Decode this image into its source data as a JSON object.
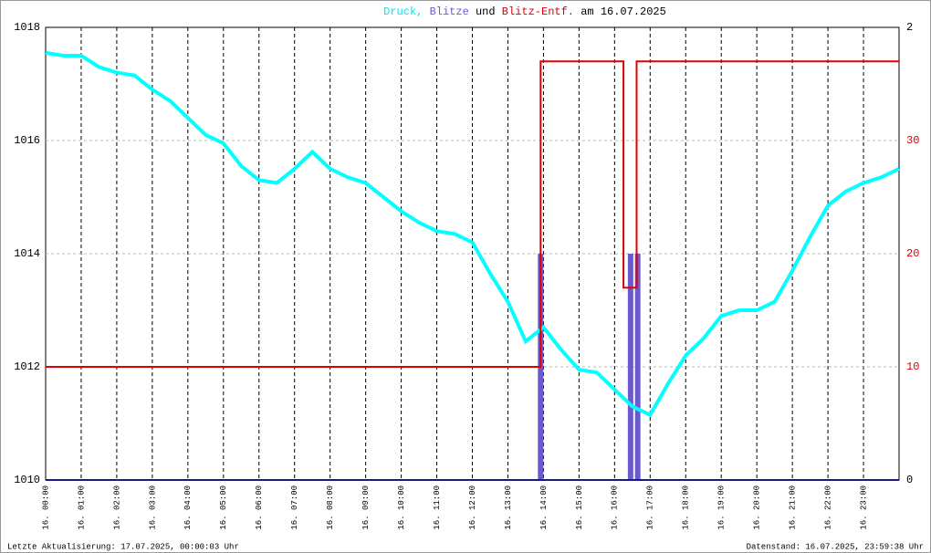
{
  "chart_data": {
    "type": "line",
    "title_parts": [
      {
        "text": "Druck,",
        "color": "#00e5ee"
      },
      {
        "text": "Blitze",
        "color": "#6a5acd"
      },
      {
        "text": "und",
        "color": "#000000"
      },
      {
        "text": "Blitz-Entf.",
        "color": "#e00000"
      },
      {
        "text": "am 16.07.2025",
        "color": "#000000"
      }
    ],
    "footer_left": "Letzte Aktualisierung: 17.07.2025, 00:00:03 Uhr",
    "footer_right": "Datenstand: 16.07.2025, 23:59:38 Uhr",
    "xlim": [
      0,
      24
    ],
    "xticks": [
      {
        "value": 0,
        "label": "16. 00:00"
      },
      {
        "value": 1,
        "label": "16. 01:00"
      },
      {
        "value": 2,
        "label": "16. 02:00"
      },
      {
        "value": 3,
        "label": "16. 03:00"
      },
      {
        "value": 4,
        "label": "16. 04:00"
      },
      {
        "value": 5,
        "label": "16. 05:00"
      },
      {
        "value": 6,
        "label": "16. 06:00"
      },
      {
        "value": 7,
        "label": "16. 07:00"
      },
      {
        "value": 8,
        "label": "16. 08:00"
      },
      {
        "value": 9,
        "label": "16. 09:00"
      },
      {
        "value": 10,
        "label": "16. 10:00"
      },
      {
        "value": 11,
        "label": "16. 11:00"
      },
      {
        "value": 12,
        "label": "16. 12:00"
      },
      {
        "value": 13,
        "label": "16. 13:00"
      },
      {
        "value": 14,
        "label": "16. 14:00"
      },
      {
        "value": 15,
        "label": "16. 15:00"
      },
      {
        "value": 16,
        "label": "16. 16:00"
      },
      {
        "value": 17,
        "label": "16. 17:00"
      },
      {
        "value": 18,
        "label": "16. 18:00"
      },
      {
        "value": 19,
        "label": "16. 19:00"
      },
      {
        "value": 20,
        "label": "16. 20:00"
      },
      {
        "value": 21,
        "label": "16. 21:00"
      },
      {
        "value": 22,
        "label": "16. 22:00"
      },
      {
        "value": 23,
        "label": "16. 23:00"
      }
    ],
    "ylim": [
      1010,
      1018
    ],
    "yticks": [
      1010,
      1012,
      1014,
      1016,
      1018
    ],
    "y2lim": [
      0,
      2
    ],
    "y2ticks": [
      0,
      2
    ],
    "y3lim": [
      0,
      40
    ],
    "y3ticks": [
      10,
      20,
      30
    ],
    "grid": true,
    "series": [
      {
        "name": "Druck",
        "color": "#00ffff",
        "kind": "line",
        "axis": "y",
        "x": [
          0,
          0.5,
          1,
          1.5,
          2,
          2.5,
          3,
          3.5,
          4,
          4.5,
          5,
          5.5,
          6,
          6.5,
          7,
          7.5,
          8,
          8.5,
          9,
          9.5,
          10,
          10.5,
          11,
          11.5,
          12,
          12.5,
          13,
          13.5,
          14,
          14.5,
          15,
          15.5,
          16,
          16.5,
          17,
          17.5,
          18,
          18.5,
          19,
          19.5,
          20,
          20.5,
          21,
          21.5,
          22,
          22.5,
          23,
          23.5,
          24
        ],
        "values": [
          1017.55,
          1017.5,
          1017.5,
          1017.3,
          1017.2,
          1017.15,
          1016.9,
          1016.7,
          1016.4,
          1016.1,
          1015.95,
          1015.55,
          1015.3,
          1015.25,
          1015.5,
          1015.8,
          1015.5,
          1015.35,
          1015.25,
          1015.0,
          1014.75,
          1014.55,
          1014.4,
          1014.35,
          1014.2,
          1013.65,
          1013.15,
          1012.45,
          1012.7,
          1012.3,
          1011.95,
          1011.9,
          1011.6,
          1011.3,
          1011.15,
          1011.7,
          1012.2,
          1012.5,
          1012.9,
          1013.0,
          1013.0,
          1013.15,
          1013.7,
          1014.3,
          1014.85,
          1015.1,
          1015.25,
          1015.35,
          1015.5
        ]
      },
      {
        "name": "Blitze",
        "color": "#6a5acd",
        "kind": "bar",
        "axis": "y2",
        "x": [
          13.92,
          16.45,
          16.65
        ],
        "values": [
          1,
          1,
          1
        ]
      },
      {
        "name": "Blitz-Entf.",
        "color": "#e00000",
        "kind": "line",
        "axis": "y3",
        "x": [
          0,
          13.92,
          13.92,
          16.25,
          16.25,
          16.62,
          16.62,
          24
        ],
        "values": [
          10,
          10,
          37,
          37,
          17,
          17,
          37,
          37
        ]
      }
    ]
  }
}
